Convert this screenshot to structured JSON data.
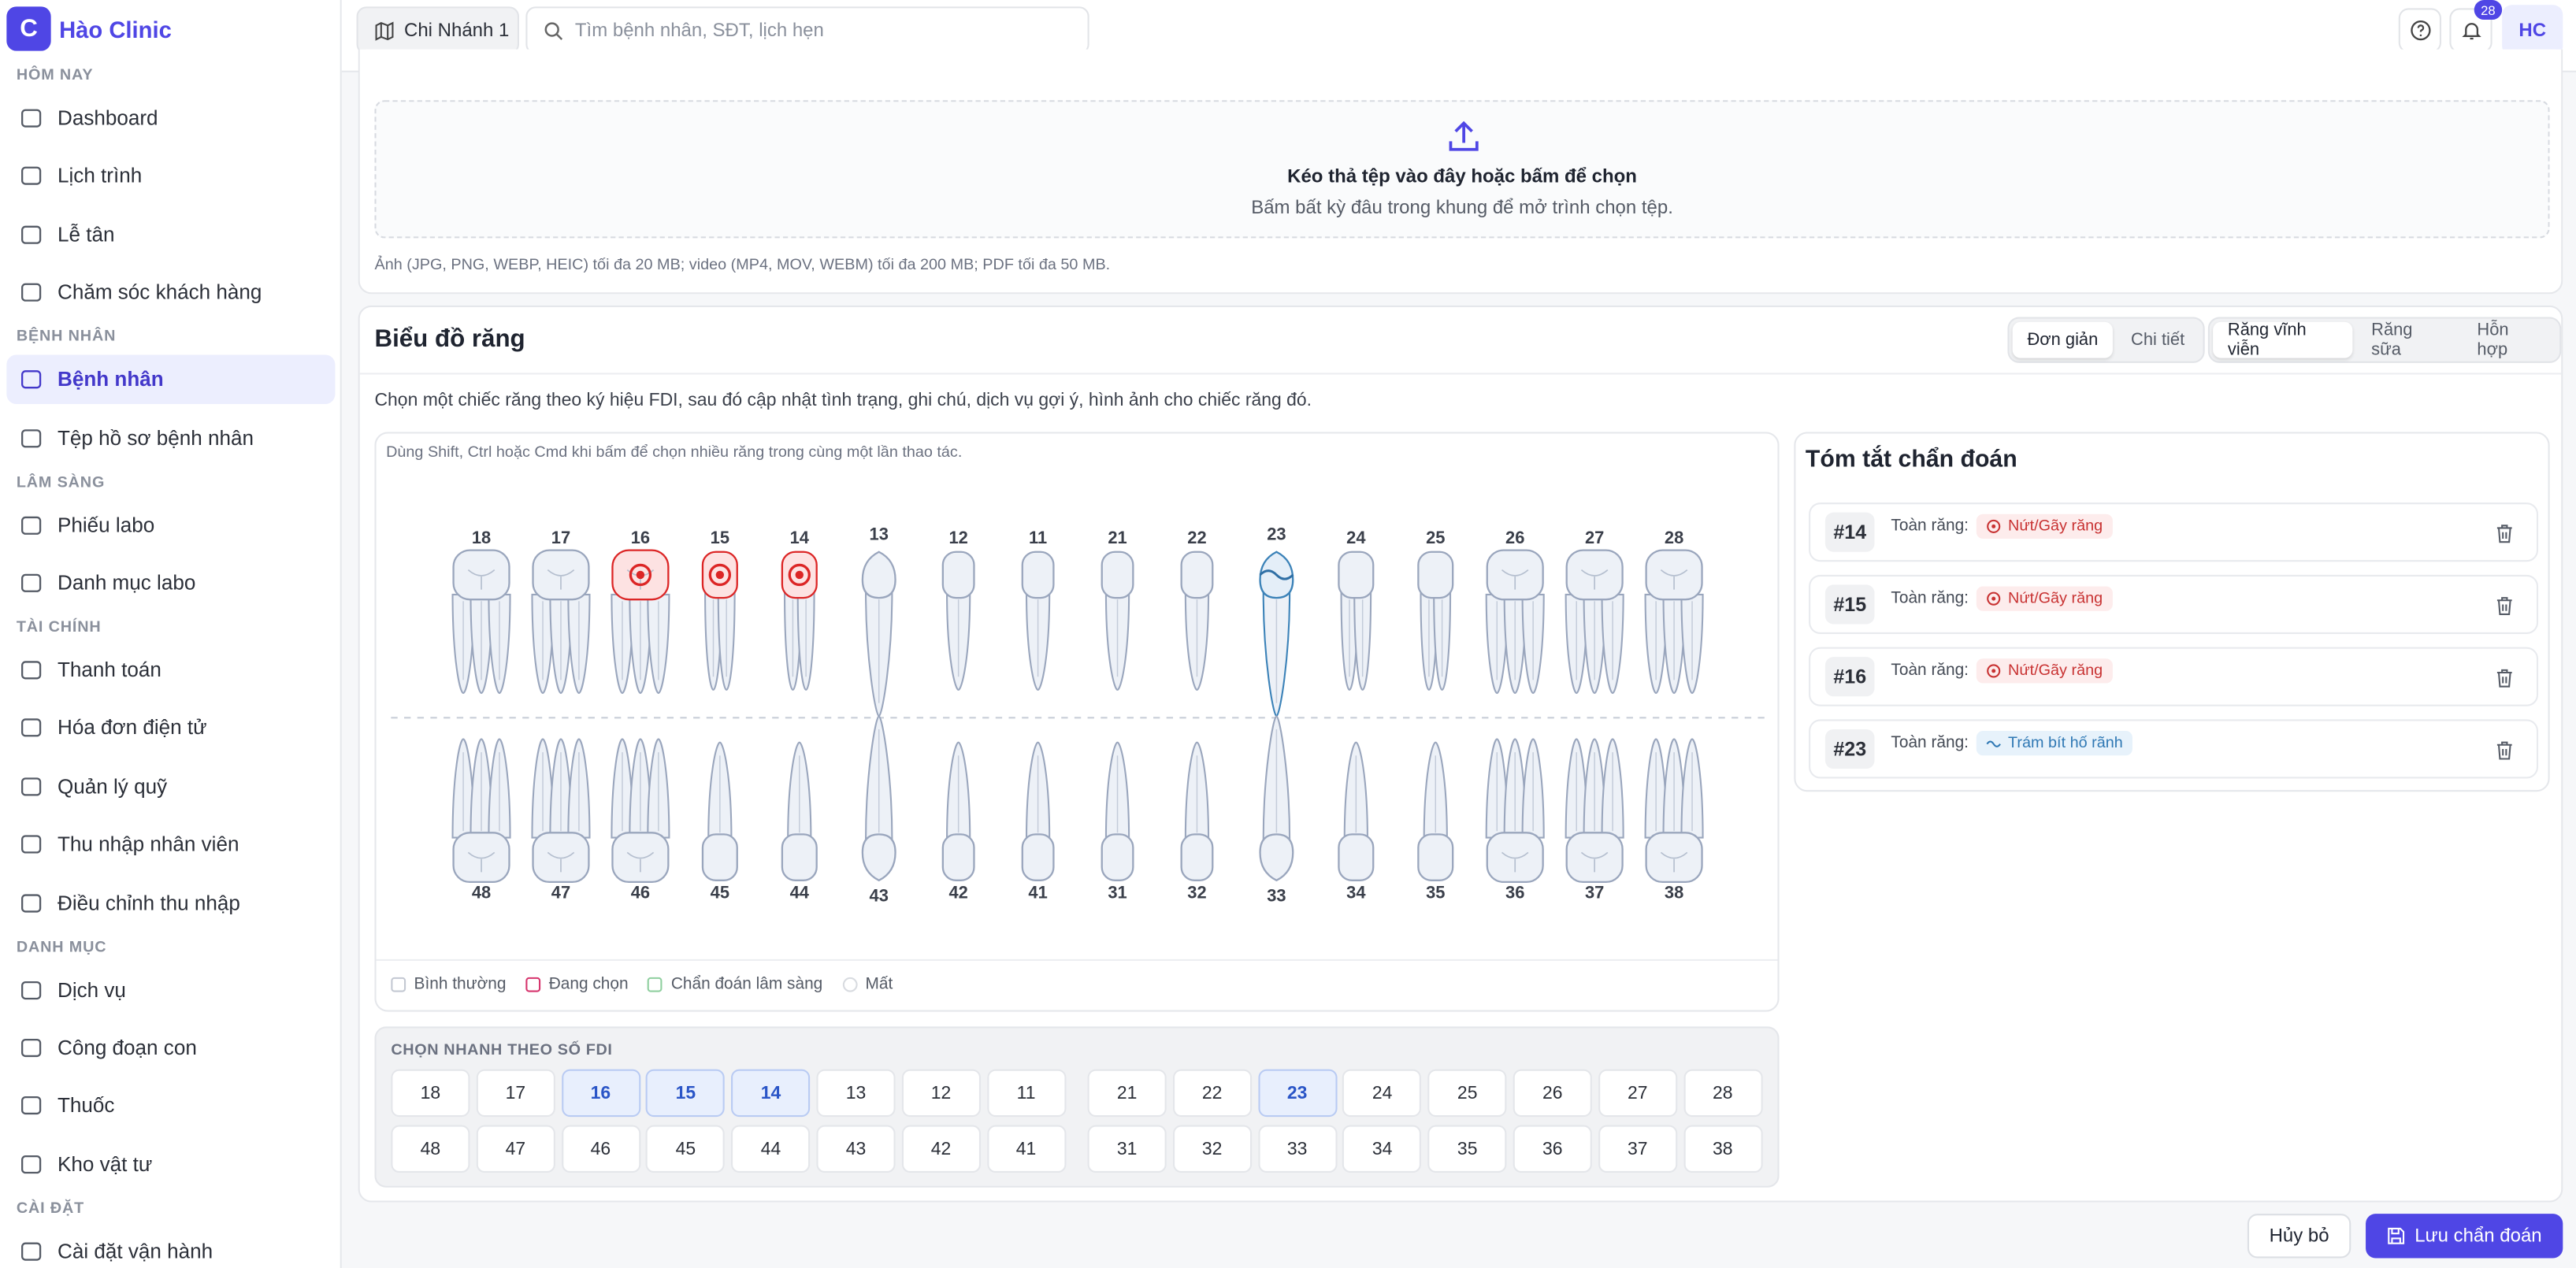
{
  "sidebar": {
    "brand_letter": "C",
    "brand": "Hào Clinic",
    "active": {
      "section": 1,
      "item": 0
    },
    "sections": [
      {
        "title": "HÔM NAY",
        "items": [
          "Dashboard",
          "Lịch trình",
          "Lễ tân",
          "Chăm sóc khách hàng"
        ]
      },
      {
        "title": "BỆNH NHÂN",
        "items": [
          "Bệnh nhân",
          "Tệp hồ sơ bệnh nhân"
        ]
      },
      {
        "title": "LÂM SÀNG",
        "items": [
          "Phiếu labo",
          "Danh mục labo"
        ]
      },
      {
        "title": "TÀI CHÍNH",
        "items": [
          "Thanh toán",
          "Hóa đơn điện tử",
          "Quản lý quỹ",
          "Thu nhập nhân viên",
          "Điều chỉnh thu nhập"
        ]
      },
      {
        "title": "DANH MỤC",
        "items": [
          "Dịch vụ",
          "Công đoạn con",
          "Thuốc",
          "Kho vật tư"
        ]
      },
      {
        "title": "CÀI ĐẶT",
        "items": [
          "Cài đặt vận hành"
        ]
      }
    ]
  },
  "topbar": {
    "branch": "Chi Nhánh 1",
    "search_placeholder": "Tìm bệnh nhân, SĐT, lịch hẹn",
    "notifications": 28,
    "avatar": "HC"
  },
  "upload": {
    "title": "Kéo thả tệp vào đây hoặc bấm để chọn",
    "subtitle": "Bấm bất kỳ đâu trong khung để mở trình chọn tệp.",
    "note": "Ảnh (JPG, PNG, WEBP, HEIC) tối đa 20 MB; video (MP4, MOV, WEBM) tối đa 200 MB; PDF tối đa 50 MB."
  },
  "chart": {
    "title": "Biểu đồ răng",
    "view_tabs": [
      "Đơn giản",
      "Chi tiết"
    ],
    "view_active": 0,
    "dentition_tabs": [
      "Răng vĩnh viễn",
      "Răng sữa",
      "Hỗn hợp"
    ],
    "dentition_active": 0,
    "description": "Chọn một chiếc răng theo ký hiệu FDI, sau đó cập nhật tình trạng, ghi chú, dịch vụ gợi ý, hình ảnh cho chiếc răng đó.",
    "hint": "Dùng Shift, Ctrl hoặc Cmd khi bấm để chọn nhiều răng trong cùng một lần thao tác.",
    "upper": {
      "numbers": [
        18,
        17,
        16,
        15,
        14,
        13,
        12,
        11,
        21,
        22,
        23,
        24,
        25,
        26,
        27,
        28
      ],
      "states": [
        "normal",
        "normal",
        "fracture",
        "fracture",
        "fracture",
        "normal",
        "normal",
        "normal",
        "normal",
        "normal",
        "sealant",
        "normal",
        "normal",
        "normal",
        "normal",
        "normal"
      ]
    },
    "lower": {
      "numbers": [
        48,
        47,
        46,
        45,
        44,
        43,
        42,
        41,
        31,
        32,
        33,
        34,
        35,
        36,
        37,
        38
      ],
      "states": [
        "normal",
        "normal",
        "normal",
        "normal",
        "normal",
        "normal",
        "normal",
        "normal",
        "normal",
        "normal",
        "normal",
        "normal",
        "normal",
        "normal",
        "normal",
        "normal"
      ]
    },
    "legend": [
      {
        "label": "Bình thường",
        "color": "#c3c8d2"
      },
      {
        "label": "Đang chọn",
        "color": "#d6336c"
      },
      {
        "label": "Chẩn đoán lâm sàng",
        "color": "#8fcf9f"
      },
      {
        "label": "Mất",
        "color": "#d8dbe0"
      }
    ],
    "quick_title": "CHỌN NHANH THEO SỐ FDI"
  },
  "summary": {
    "title": "Tóm tắt chẩn đoán",
    "items": [
      {
        "tooth": "#14",
        "scope": "Toàn răng:",
        "tag": "Nứt/Gãy răng",
        "kind": "fracture"
      },
      {
        "tooth": "#15",
        "scope": "Toàn răng:",
        "tag": "Nứt/Gãy răng",
        "kind": "fracture"
      },
      {
        "tooth": "#16",
        "scope": "Toàn răng:",
        "tag": "Nứt/Gãy răng",
        "kind": "fracture"
      },
      {
        "tooth": "#23",
        "scope": "Toàn răng:",
        "tag": "Trám bít hố rãnh",
        "kind": "sealant"
      }
    ]
  },
  "footer": {
    "cancel": "Hủy bỏ",
    "save": "Lưu chẩn đoán"
  }
}
